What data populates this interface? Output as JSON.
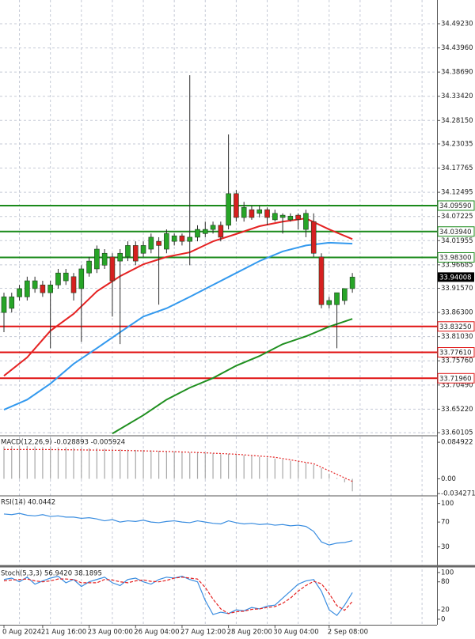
{
  "chart_data": [
    {
      "type": "candlestick",
      "categories": [
        "0 Aug 2024",
        null,
        null,
        null,
        null,
        "21 Aug 16:00",
        null,
        null,
        null,
        null,
        null,
        "23 Aug 00:00",
        null,
        null,
        null,
        null,
        null,
        "26 Aug 04:00",
        null,
        null,
        null,
        null,
        null,
        "27 Aug 12:00",
        null,
        null,
        null,
        null,
        null,
        "28 Aug 20:00",
        null,
        null,
        null,
        null,
        null,
        "30 Aug 04:00",
        null,
        null,
        null,
        null,
        null,
        null,
        "2 Sep 08:00",
        null,
        null,
        null
      ],
      "open": [
        33.863,
        33.872,
        33.897,
        33.897,
        33.915,
        33.923,
        33.906,
        33.923,
        33.932,
        33.941,
        33.915,
        33.949,
        33.958,
        33.966,
        33.984,
        33.975,
        33.984,
        34.009,
        33.992,
        34.001,
        34.018,
        34.001,
        34.018,
        34.03,
        34.018,
        34.027,
        34.035,
        34.044,
        34.053,
        34.053,
        34.122,
        34.07,
        34.087,
        34.079,
        34.087,
        34.065,
        34.07,
        34.065,
        34.075,
        34.044,
        34.061,
        33.984,
        33.88,
        33.88,
        33.889,
        33.915
      ],
      "high": [
        33.906,
        33.906,
        33.923,
        33.941,
        33.941,
        33.932,
        33.932,
        33.958,
        33.958,
        33.949,
        33.966,
        33.984,
        34.009,
        34.001,
        33.992,
        34.001,
        34.018,
        34.018,
        34.018,
        34.035,
        34.027,
        34.044,
        34.035,
        34.035,
        34.38,
        34.053,
        34.061,
        34.061,
        34.061,
        34.251,
        34.13,
        34.104,
        34.096,
        34.096,
        34.092,
        34.087,
        34.079,
        34.079,
        34.079,
        34.087,
        34.079,
        33.992,
        33.897,
        33.906,
        33.915,
        33.949
      ],
      "low": [
        33.82,
        33.863,
        33.889,
        33.889,
        33.906,
        33.897,
        33.785,
        33.915,
        33.923,
        33.889,
        33.799,
        33.941,
        33.949,
        33.958,
        33.854,
        33.794,
        33.975,
        33.966,
        33.984,
        33.992,
        33.88,
        33.992,
        34.009,
        34.009,
        33.966,
        34.018,
        34.027,
        34.035,
        34.018,
        34.044,
        34.061,
        34.061,
        34.065,
        34.07,
        34.053,
        34.061,
        34.035,
        34.061,
        34.044,
        34.027,
        33.984,
        33.872,
        33.872,
        33.785,
        33.88,
        33.906
      ],
      "close": [
        33.897,
        33.897,
        33.915,
        33.932,
        33.932,
        33.906,
        33.923,
        33.949,
        33.949,
        33.906,
        33.958,
        33.975,
        34.001,
        33.992,
        33.932,
        33.992,
        34.009,
        33.975,
        34.009,
        34.027,
        34.009,
        34.035,
        34.03,
        34.018,
        34.027,
        34.044,
        34.044,
        34.053,
        34.027,
        34.122,
        34.07,
        34.092,
        34.07,
        34.087,
        34.07,
        34.079,
        34.075,
        34.073,
        34.066,
        34.079,
        33.992,
        33.88,
        33.889,
        33.906,
        33.915,
        33.94008
      ],
      "up_color": "#27a527",
      "down_color": "#d62020",
      "series": [
        {
          "color": "#e52222",
          "x": [
            0,
            3,
            6,
            9,
            12,
            15,
            18,
            21,
            24,
            27,
            30,
            33,
            36,
            39,
            42,
            45
          ],
          "values": [
            33.725,
            33.765,
            33.823,
            33.86,
            33.909,
            33.942,
            33.968,
            33.984,
            33.994,
            34.018,
            34.034,
            34.051,
            34.061,
            34.068,
            34.044,
            34.023
          ]
        },
        {
          "color": "#3399ee",
          "x": [
            0,
            3,
            6,
            9,
            12,
            15,
            18,
            21,
            24,
            27,
            30,
            33,
            36,
            39,
            42,
            45
          ],
          "values": [
            33.651,
            33.673,
            33.708,
            33.751,
            33.785,
            33.82,
            33.854,
            33.872,
            33.897,
            33.923,
            33.949,
            33.975,
            33.996,
            34.009,
            34.015,
            34.013
          ]
        },
        {
          "color": "#1f8f1f",
          "x": [
            14,
            18,
            21,
            24,
            27,
            30,
            33,
            36,
            39,
            42,
            45
          ],
          "values": [
            33.599,
            33.639,
            33.673,
            33.699,
            33.72,
            33.747,
            33.768,
            33.794,
            33.811,
            33.832,
            33.849
          ]
        }
      ],
      "levels": [
        {
          "value": 34.0959,
          "label": "34.09590",
          "color": "#1a8a1a"
        },
        {
          "value": 34.0394,
          "label": "34.03940",
          "color": "#1a8a1a"
        },
        {
          "value": 33.983,
          "label": "33.98300",
          "color": "#1a8a1a"
        },
        {
          "value": 33.8325,
          "label": "33.83250",
          "color": "#e01010"
        },
        {
          "value": 33.7761,
          "label": "33.77610",
          "color": "#e01010"
        },
        {
          "value": 33.7196,
          "label": "33.71960",
          "color": "#e01010"
        }
      ],
      "current": {
        "value": 33.94008,
        "label": "33.94008"
      },
      "ylim": [
        33.596,
        34.544
      ],
      "yticks": [
        {
          "value": 34.4923,
          "label": "34.49230"
        },
        {
          "value": 34.4396,
          "label": "34.43960"
        },
        {
          "value": 34.3869,
          "label": "34.38690"
        },
        {
          "value": 34.3342,
          "label": "34.33420"
        },
        {
          "value": 34.2815,
          "label": "34.28150"
        },
        34.23035,
        34.17765,
        34.12495,
        34.07225,
        34.01955,
        33.96685,
        {
          "value": 33.9157,
          "label": "33.91570"
        },
        {
          "value": 33.863,
          "label": "33.86300"
        },
        {
          "value": 33.8103,
          "label": "33.81030"
        },
        {
          "value": 33.7576,
          "label": "33.75760"
        },
        {
          "value": 33.7049,
          "label": "33.70490"
        },
        {
          "value": 33.6522,
          "label": "33.65220"
        },
        33.60105
      ],
      "grid": true
    },
    {
      "type": "macd",
      "title": "MACD(12,26,9) -0.028893 -0.005924",
      "series": [
        {
          "style": "histogram",
          "color": "#a8a8a8",
          "values": [
            0.075,
            0.076,
            0.077,
            0.076,
            0.075,
            0.074,
            0.074,
            0.073,
            0.073,
            0.072,
            0.072,
            0.071,
            0.071,
            0.07,
            0.069,
            0.069,
            0.068,
            0.067,
            0.067,
            0.066,
            0.065,
            0.064,
            0.063,
            0.062,
            0.061,
            0.061,
            0.06,
            0.059,
            0.057,
            0.058,
            0.057,
            0.055,
            0.053,
            0.051,
            0.049,
            0.047,
            0.045,
            0.042,
            0.04,
            0.037,
            0.033,
            0.025,
            0.012,
            0.002,
            -0.008,
            -0.029
          ]
        },
        {
          "style": "dotted",
          "color": "#e52222",
          "x": [
            0,
            5,
            10,
            15,
            20,
            25,
            30,
            35,
            40,
            45
          ],
          "values": [
            0.068,
            0.068,
            0.067,
            0.066,
            0.064,
            0.061,
            0.057,
            0.05,
            0.035,
            -0.006
          ]
        }
      ],
      "ylim": [
        -0.0377,
        0.098
      ],
      "yticks": [
        0.084922,
        {
          "value": 0,
          "label": "0.00"
        },
        -0.034271
      ],
      "grid": false
    },
    {
      "type": "rsi",
      "title": "RSI(14) 40.0442",
      "series": [
        {
          "style": "line",
          "color": "#3a8de0",
          "values": [
            83,
            82,
            84,
            81,
            80,
            82,
            79,
            80,
            78,
            78,
            76,
            77,
            75,
            72,
            74,
            70,
            72,
            71,
            73,
            70,
            69,
            71,
            72,
            70,
            69,
            72,
            70,
            68,
            67,
            72,
            69,
            67,
            68,
            66,
            67,
            65,
            66,
            64,
            65,
            63,
            55,
            38,
            33,
            36,
            37,
            40
          ]
        }
      ],
      "ylim": [
        0,
        111
      ],
      "yticks": [
        100,
        70,
        30
      ],
      "grid": false
    },
    {
      "type": "stoch",
      "title": "Stoch(5,3,3) 56.9420 38.1895",
      "series": [
        {
          "style": "line",
          "color": "#3a8de0",
          "values": [
            85,
            88,
            80,
            90,
            75,
            82,
            88,
            92,
            78,
            85,
            70,
            80,
            85,
            90,
            78,
            72,
            85,
            88,
            80,
            75,
            85,
            90,
            88,
            92,
            85,
            80,
            40,
            10,
            15,
            12,
            20,
            18,
            25,
            22,
            28,
            30,
            45,
            60,
            75,
            82,
            85,
            60,
            20,
            8,
            30,
            57
          ]
        },
        {
          "style": "dashed",
          "color": "#e52222",
          "values": [
            82,
            84,
            85,
            86,
            82,
            80,
            82,
            86,
            86,
            85,
            78,
            78,
            78,
            85,
            84,
            80,
            78,
            82,
            84,
            81,
            80,
            83,
            88,
            90,
            88,
            86,
            68,
            43,
            22,
            12,
            16,
            17,
            21,
            22,
            25,
            27,
            34,
            45,
            60,
            72,
            81,
            76,
            55,
            29,
            19,
            38
          ]
        }
      ],
      "ylim": [
        -12,
        110
      ],
      "yticks": [
        100,
        80,
        20,
        0
      ],
      "grid": false
    }
  ]
}
